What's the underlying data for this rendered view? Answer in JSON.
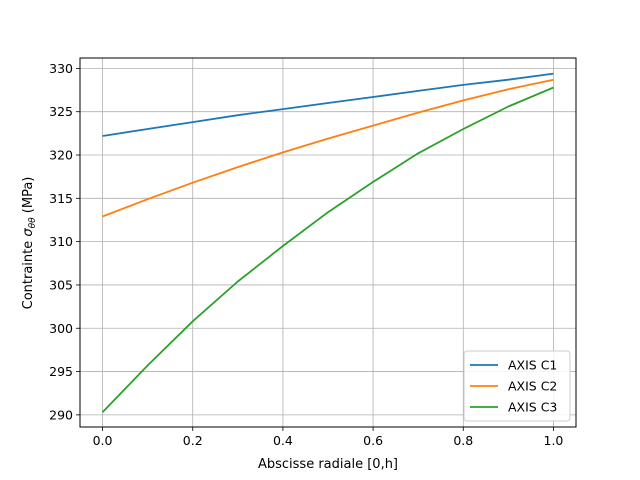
{
  "chart_data": {
    "type": "line",
    "xlabel": "Abscisse radiale [0,h]",
    "ylabel_prefix": "Contrainte ",
    "ylabel_symbol": "σ",
    "ylabel_subscript": "θθ",
    "ylabel_suffix": " (MPa)",
    "xlim": [
      -0.05,
      1.05
    ],
    "ylim": [
      288.6,
      331.2
    ],
    "xticks": [
      0.0,
      0.2,
      0.4,
      0.6,
      0.8,
      1.0
    ],
    "xtick_labels": [
      "0.0",
      "0.2",
      "0.4",
      "0.6",
      "0.8",
      "1.0"
    ],
    "yticks": [
      290,
      295,
      300,
      305,
      310,
      315,
      320,
      325,
      330
    ],
    "ytick_labels": [
      "290",
      "295",
      "300",
      "305",
      "310",
      "315",
      "320",
      "325",
      "330"
    ],
    "grid": true,
    "legend_position": "lower-right",
    "x": [
      0.0,
      0.1,
      0.2,
      0.3,
      0.4,
      0.5,
      0.6,
      0.7,
      0.8,
      0.9,
      1.0
    ],
    "series": [
      {
        "name": "AXIS C1",
        "color": "#1f77b4",
        "values": [
          322.2,
          323.0,
          323.8,
          324.6,
          325.3,
          326.0,
          326.7,
          327.4,
          328.1,
          328.7,
          329.4
        ]
      },
      {
        "name": "AXIS C2",
        "color": "#ff7f0e",
        "values": [
          312.9,
          314.9,
          316.8,
          318.6,
          320.3,
          321.9,
          323.4,
          324.9,
          326.3,
          327.6,
          328.7
        ]
      },
      {
        "name": "AXIS C3",
        "color": "#2ca02c",
        "values": [
          290.3,
          295.7,
          300.8,
          305.4,
          309.5,
          313.4,
          316.9,
          320.2,
          323.0,
          325.6,
          327.8
        ]
      }
    ]
  }
}
